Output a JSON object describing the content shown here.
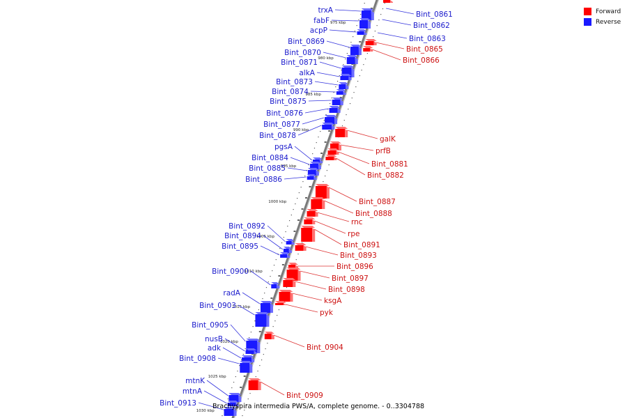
{
  "legend": {
    "forward_label": "Forward",
    "reverse_label": "Reverse",
    "forward_color": "#ff0000",
    "reverse_color": "#1a1aff"
  },
  "caption": "Brachyspira intermedia PWS/A, complete genome. - 0..3304788",
  "ticks": [
    "975 kbp",
    "980 kbp",
    "985 kbp",
    "990 kbp",
    "995 kbp",
    "1000 kbp",
    "1005 kbp",
    "1010 kbp",
    "1015 kbp",
    "1020 kbp",
    "1025 kbp",
    "1030 kbp"
  ],
  "genes": [
    {
      "name": "trxA",
      "strand": "reverse"
    },
    {
      "name": "fabF",
      "strand": "reverse"
    },
    {
      "name": "acpP",
      "strand": "reverse"
    },
    {
      "name": "Bint_0869",
      "strand": "reverse"
    },
    {
      "name": "Bint_0870",
      "strand": "reverse"
    },
    {
      "name": "Bint_0871",
      "strand": "reverse"
    },
    {
      "name": "alkA",
      "strand": "reverse"
    },
    {
      "name": "Bint_0873",
      "strand": "reverse"
    },
    {
      "name": "Bint_0874",
      "strand": "reverse"
    },
    {
      "name": "Bint_0875",
      "strand": "reverse"
    },
    {
      "name": "Bint_0876",
      "strand": "reverse"
    },
    {
      "name": "Bint_0877",
      "strand": "reverse"
    },
    {
      "name": "Bint_0878",
      "strand": "reverse"
    },
    {
      "name": "pgsA",
      "strand": "reverse"
    },
    {
      "name": "Bint_0884",
      "strand": "reverse"
    },
    {
      "name": "Bint_0885",
      "strand": "reverse"
    },
    {
      "name": "Bint_0886",
      "strand": "reverse"
    },
    {
      "name": "Bint_0892",
      "strand": "reverse"
    },
    {
      "name": "Bint_0894",
      "strand": "reverse"
    },
    {
      "name": "Bint_0895",
      "strand": "reverse"
    },
    {
      "name": "Bint_0900",
      "strand": "reverse"
    },
    {
      "name": "radA",
      "strand": "reverse"
    },
    {
      "name": "Bint_0903",
      "strand": "reverse"
    },
    {
      "name": "Bint_0905",
      "strand": "reverse"
    },
    {
      "name": "nusB",
      "strand": "reverse"
    },
    {
      "name": "adk",
      "strand": "reverse"
    },
    {
      "name": "Bint_0908",
      "strand": "reverse"
    },
    {
      "name": "mtnK",
      "strand": "reverse"
    },
    {
      "name": "mtnA",
      "strand": "reverse"
    },
    {
      "name": "Bint_0913",
      "strand": "reverse"
    },
    {
      "name": "Bint_0861",
      "strand": "reverse"
    },
    {
      "name": "Bint_0862",
      "strand": "reverse"
    },
    {
      "name": "Bint_0863",
      "strand": "reverse"
    },
    {
      "name": "Bint_0865",
      "strand": "forward"
    },
    {
      "name": "Bint_0866",
      "strand": "forward"
    },
    {
      "name": "galK",
      "strand": "forward"
    },
    {
      "name": "prfB",
      "strand": "forward"
    },
    {
      "name": "Bint_0881",
      "strand": "forward"
    },
    {
      "name": "Bint_0882",
      "strand": "forward"
    },
    {
      "name": "Bint_0887",
      "strand": "forward"
    },
    {
      "name": "Bint_0888",
      "strand": "forward"
    },
    {
      "name": "rnc",
      "strand": "forward"
    },
    {
      "name": "rpe",
      "strand": "forward"
    },
    {
      "name": "Bint_0891",
      "strand": "forward"
    },
    {
      "name": "Bint_0893",
      "strand": "forward"
    },
    {
      "name": "Bint_0896",
      "strand": "forward"
    },
    {
      "name": "Bint_0897",
      "strand": "forward"
    },
    {
      "name": "Bint_0898",
      "strand": "forward"
    },
    {
      "name": "ksgA",
      "strand": "forward"
    },
    {
      "name": "pyk",
      "strand": "forward"
    },
    {
      "name": "Bint_0904",
      "strand": "forward"
    },
    {
      "name": "Bint_0909",
      "strand": "forward"
    }
  ]
}
